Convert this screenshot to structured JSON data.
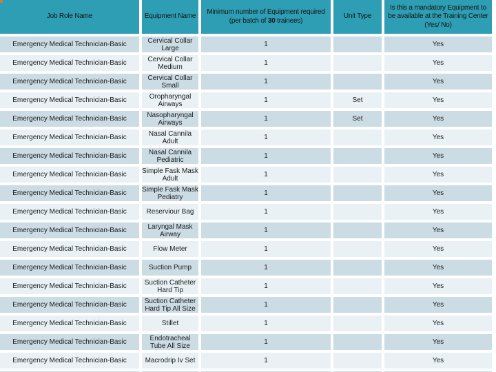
{
  "colors": {
    "header_bg": "#2D9EB4",
    "row_dark": "#CBDCE4",
    "row_light": "#E9F1F5",
    "separator": "#FFFFFF",
    "text": "#1B1B1B",
    "corner_accent": "#C87E3E"
  },
  "table": {
    "headers": {
      "job_role": "Job Role Name",
      "equipment": "Equipment Name",
      "min_required_prefix": "Minimum number of Equipment required (per batch of ",
      "min_required_bold": "30",
      "min_required_suffix": " trainees)",
      "unit_type": "Unit Type",
      "mandatory": "Is this a mandatory Equipment to be available at the Training Center (Yes/ No)"
    },
    "rows": [
      {
        "job_role": "Emergency Medical Technician-Basic",
        "equipment": "Cervical Collar Large",
        "min_required": "1",
        "unit_type": "",
        "mandatory": "Yes"
      },
      {
        "job_role": "Emergency Medical Technician-Basic",
        "equipment": "Cervical Collar Medium",
        "min_required": "1",
        "unit_type": "",
        "mandatory": "Yes"
      },
      {
        "job_role": "Emergency Medical Technician-Basic",
        "equipment": "Cervical Collar Small",
        "min_required": "1",
        "unit_type": "",
        "mandatory": "Yes"
      },
      {
        "job_role": "Emergency Medical Technician-Basic",
        "equipment": "Oropharyngal Airways",
        "min_required": "1",
        "unit_type": "Set",
        "mandatory": "Yes"
      },
      {
        "job_role": "Emergency Medical Technician-Basic",
        "equipment": "Nasopharyngal Airways",
        "min_required": "1",
        "unit_type": "Set",
        "mandatory": "Yes"
      },
      {
        "job_role": "Emergency Medical Technician-Basic",
        "equipment": "Nasal Cannila Adult",
        "min_required": "1",
        "unit_type": "",
        "mandatory": "Yes"
      },
      {
        "job_role": "Emergency Medical Technician-Basic",
        "equipment": "Nasal Cannila Pediatric",
        "min_required": "1",
        "unit_type": "",
        "mandatory": "Yes"
      },
      {
        "job_role": "Emergency Medical Technician-Basic",
        "equipment": "Simple Fask Mask Adult",
        "min_required": "1",
        "unit_type": "",
        "mandatory": "Yes"
      },
      {
        "job_role": "Emergency Medical Technician-Basic",
        "equipment": "Simple Fask Mask Pediatry",
        "min_required": "1",
        "unit_type": "",
        "mandatory": "Yes"
      },
      {
        "job_role": "Emergency Medical Technician-Basic",
        "equipment": "Reserviour Bag",
        "min_required": "1",
        "unit_type": "",
        "mandatory": "Yes"
      },
      {
        "job_role": "Emergency Medical Technician-Basic",
        "equipment": "Laryngal Mask Airway",
        "min_required": "1",
        "unit_type": "",
        "mandatory": "Yes"
      },
      {
        "job_role": "Emergency Medical Technician-Basic",
        "equipment": "Flow Meter",
        "min_required": "1",
        "unit_type": "",
        "mandatory": "Yes"
      },
      {
        "job_role": "Emergency Medical Technician-Basic",
        "equipment": "Suction Pump",
        "min_required": "1",
        "unit_type": "",
        "mandatory": "Yes"
      },
      {
        "job_role": "Emergency Medical Technician-Basic",
        "equipment": "Suction Catheter Hard Tip",
        "min_required": "1",
        "unit_type": "",
        "mandatory": "Yes"
      },
      {
        "job_role": "Emergency Medical Technician-Basic",
        "equipment": "Suction Catheter Hard Tip All Size",
        "min_required": "1",
        "unit_type": "",
        "mandatory": "Yes"
      },
      {
        "job_role": "Emergency Medical Technician-Basic",
        "equipment": "Stillet",
        "min_required": "1",
        "unit_type": "",
        "mandatory": "Yes"
      },
      {
        "job_role": "Emergency Medical Technician-Basic",
        "equipment": "Endotracheal Tube All Size",
        "min_required": "1",
        "unit_type": "",
        "mandatory": "Yes"
      },
      {
        "job_role": "Emergency Medical Technician-Basic",
        "equipment": "Macrodrip Iv Set",
        "min_required": "1",
        "unit_type": "",
        "mandatory": "Yes"
      },
      {
        "job_role": "",
        "equipment": "",
        "min_required": "",
        "unit_type": "",
        "mandatory": ""
      }
    ]
  }
}
